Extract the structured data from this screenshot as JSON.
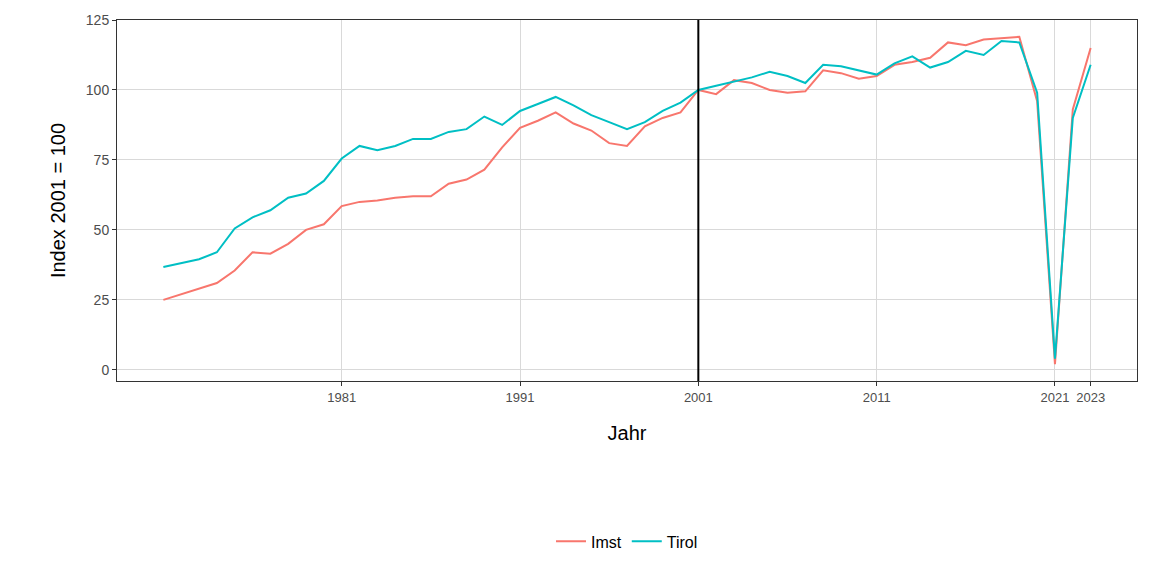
{
  "chart_data": {
    "type": "line",
    "x_label": "Jahr",
    "y_label": "Index 2001 = 100",
    "x": [
      1971,
      1972,
      1973,
      1974,
      1975,
      1976,
      1977,
      1978,
      1979,
      1980,
      1981,
      1982,
      1983,
      1984,
      1985,
      1986,
      1987,
      1988,
      1989,
      1990,
      1991,
      1992,
      1993,
      1994,
      1995,
      1996,
      1997,
      1998,
      1999,
      2000,
      2001,
      2002,
      2003,
      2004,
      2005,
      2006,
      2007,
      2008,
      2009,
      2010,
      2011,
      2012,
      2013,
      2014,
      2015,
      2016,
      2017,
      2018,
      2019,
      2020,
      2021,
      2022,
      2023
    ],
    "series": [
      {
        "name": "Imst",
        "color": "#F8766D",
        "values": [
          25,
          27,
          29,
          31,
          35.5,
          42,
          41.5,
          45,
          50,
          52,
          58.5,
          60,
          60.5,
          61.5,
          62,
          62,
          66.5,
          68,
          71.5,
          79.5,
          86.5,
          89,
          92,
          88,
          85.5,
          81,
          80,
          87,
          90,
          92,
          100,
          98.5,
          103.5,
          102.5,
          100,
          99,
          99.5,
          107,
          106,
          104,
          105,
          109,
          110,
          111.5,
          117,
          116,
          118,
          118.5,
          119,
          96,
          2,
          93,
          115
        ]
      },
      {
        "name": "Tirol",
        "color": "#00BFC4",
        "values": [
          36.7,
          38,
          39.5,
          42,
          50.5,
          54.5,
          57,
          61.5,
          63,
          67.5,
          75.5,
          80,
          78.5,
          80,
          82.5,
          82.5,
          85,
          86,
          90.5,
          87.5,
          92.5,
          95,
          97.5,
          94.5,
          91,
          88.5,
          86,
          88.5,
          92.5,
          95.5,
          100,
          101.5,
          103,
          104.5,
          106.5,
          105,
          102.5,
          109,
          108.5,
          107,
          105.5,
          109.5,
          112,
          108,
          110,
          114,
          112.5,
          117.5,
          117,
          99,
          4,
          90,
          109
        ]
      }
    ],
    "reference_line_x": 2001,
    "xlim": [
      1968.4,
      2025.6
    ],
    "xticks": [
      1981,
      1991,
      2001,
      2011,
      2021,
      2023
    ],
    "ylim": [
      -4,
      125
    ],
    "yticks": [
      0,
      25,
      50,
      75,
      100,
      125
    ],
    "grid": true,
    "legend": "bottom"
  }
}
